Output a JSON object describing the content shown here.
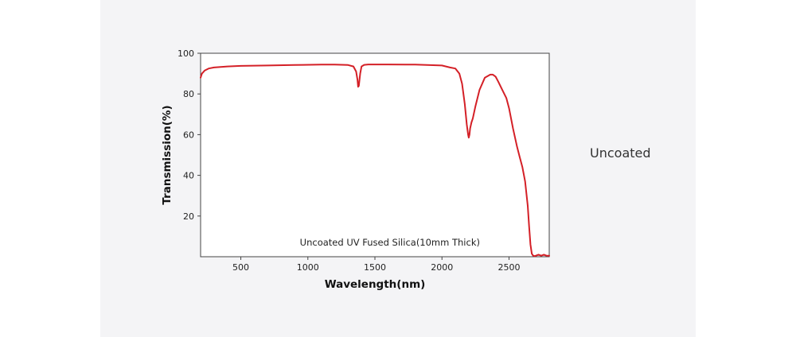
{
  "side_label": "Uncoated",
  "chart_data": {
    "type": "line",
    "title": "",
    "annotation": "Uncoated UV Fused Silica(10mm Thick)",
    "xlabel": "Wavelength(nm)",
    "ylabel": "Transmission(%)",
    "xlim": [
      200,
      2800
    ],
    "ylim": [
      0,
      100
    ],
    "xticks": [
      500,
      1000,
      1500,
      2000,
      2500
    ],
    "yticks": [
      20,
      40,
      60,
      80,
      100
    ],
    "grid": false,
    "line_color": "#d42027",
    "series": [
      {
        "name": "",
        "x": [
          200,
          210,
          230,
          260,
          300,
          400,
          500,
          700,
          900,
          1100,
          1200,
          1300,
          1340,
          1360,
          1370,
          1375,
          1380,
          1390,
          1400,
          1420,
          1450,
          1600,
          1800,
          2000,
          2060,
          2100,
          2130,
          2150,
          2170,
          2185,
          2195,
          2200,
          2205,
          2210,
          2220,
          2230,
          2250,
          2280,
          2320,
          2360,
          2380,
          2400,
          2420,
          2450,
          2480,
          2500,
          2530,
          2560,
          2580,
          2600,
          2620,
          2640,
          2650,
          2660,
          2670,
          2680,
          2690,
          2700,
          2720,
          2740,
          2760,
          2780,
          2800
        ],
        "y": [
          88,
          90,
          91.5,
          92.5,
          93,
          93.5,
          93.8,
          94,
          94.2,
          94.4,
          94.4,
          94.2,
          93.5,
          91,
          87,
          83.5,
          84,
          90,
          93.5,
          94.3,
          94.5,
          94.5,
          94.4,
          94,
          93,
          92.5,
          90,
          85,
          75,
          65,
          60,
          58.5,
          60,
          63,
          66,
          68,
          74,
          82,
          88,
          89.5,
          89.5,
          88.5,
          86,
          82,
          78,
          73,
          63,
          54,
          49,
          44,
          37,
          25,
          15,
          6,
          1.5,
          0.5,
          0.3,
          0.5,
          1,
          0.5,
          1,
          0.5,
          0.5
        ]
      }
    ]
  }
}
